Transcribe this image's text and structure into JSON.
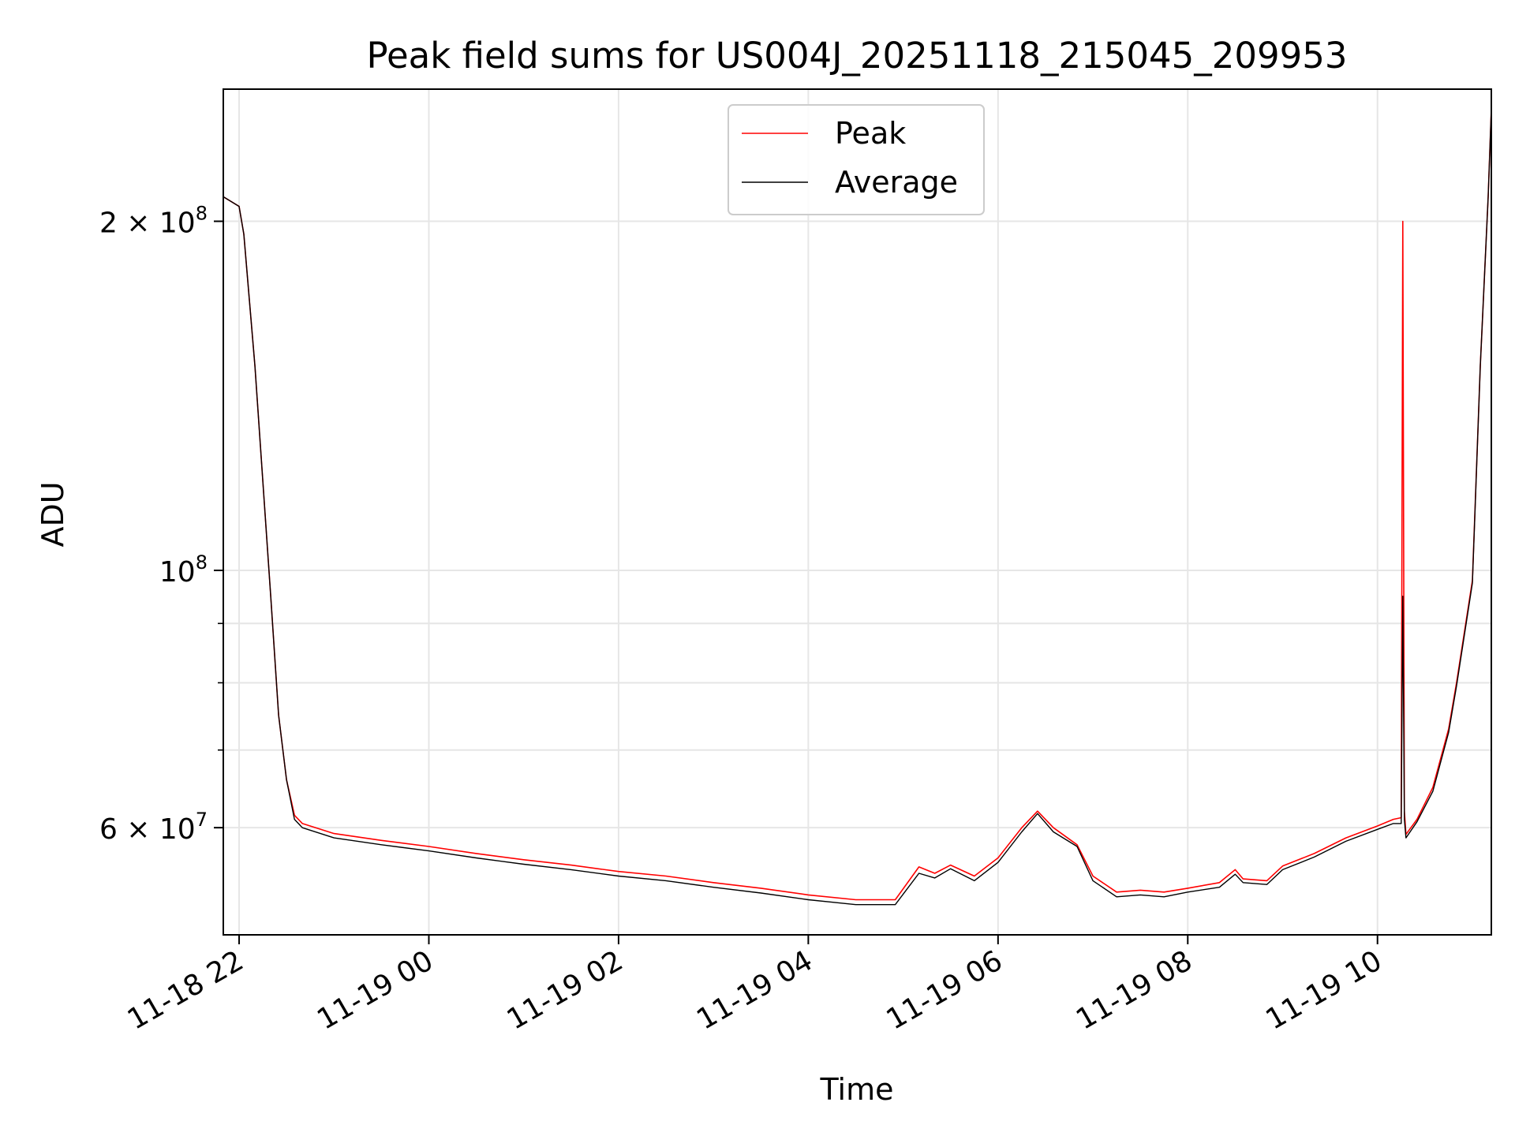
{
  "chart_data": {
    "type": "line",
    "title": "Peak field sums for US004J_20251118_215045_209953",
    "xlabel": "Time",
    "ylabel": "ADU",
    "y_scale": "log",
    "ylim": [
      48500000,
      260000000
    ],
    "xlim": [
      "2025-11-18T21:50",
      "2025-11-19T11:12"
    ],
    "grid": true,
    "legend_position": "upper center",
    "x_tick_labels": [
      {
        "t": "2025-11-18T22:00",
        "label": "11-18 22"
      },
      {
        "t": "2025-11-19T00:00",
        "label": "11-19 00"
      },
      {
        "t": "2025-11-19T02:00",
        "label": "11-19 02"
      },
      {
        "t": "2025-11-19T04:00",
        "label": "11-19 04"
      },
      {
        "t": "2025-11-19T06:00",
        "label": "11-19 06"
      },
      {
        "t": "2025-11-19T08:00",
        "label": "11-19 08"
      },
      {
        "t": "2025-11-19T10:00",
        "label": "11-19 10"
      }
    ],
    "y_tick_labels": [
      {
        "value": 200000000,
        "mantissa": "2",
        "times": " × ",
        "base": "10",
        "exp": "8"
      },
      {
        "value": 100000000,
        "mantissa": "",
        "times": "",
        "base": "10",
        "exp": "8"
      },
      {
        "value": 60000000,
        "mantissa": "6",
        "times": " × ",
        "base": "10",
        "exp": "7"
      }
    ],
    "y_minor_ticks": [
      70000000,
      80000000,
      90000000
    ],
    "series": [
      {
        "name": "Peak",
        "color": "#ff0000",
        "x": [
          "2025-11-18T21:50",
          "2025-11-18T22:00",
          "2025-11-18T22:03",
          "2025-11-18T22:10",
          "2025-11-18T22:20",
          "2025-11-18T22:25",
          "2025-11-18T22:30",
          "2025-11-18T22:35",
          "2025-11-18T22:40",
          "2025-11-18T23:00",
          "2025-11-18T23:30",
          "2025-11-19T00:00",
          "2025-11-19T00:30",
          "2025-11-19T01:00",
          "2025-11-19T01:30",
          "2025-11-19T02:00",
          "2025-11-19T02:30",
          "2025-11-19T03:00",
          "2025-11-19T03:30",
          "2025-11-19T04:00",
          "2025-11-19T04:30",
          "2025-11-19T04:55",
          "2025-11-19T05:10",
          "2025-11-19T05:20",
          "2025-11-19T05:30",
          "2025-11-19T05:45",
          "2025-11-19T06:00",
          "2025-11-19T06:15",
          "2025-11-19T06:25",
          "2025-11-19T06:35",
          "2025-11-19T06:50",
          "2025-11-19T07:00",
          "2025-11-19T07:15",
          "2025-11-19T07:30",
          "2025-11-19T07:45",
          "2025-11-19T08:00",
          "2025-11-19T08:20",
          "2025-11-19T08:30",
          "2025-11-19T08:35",
          "2025-11-19T08:50",
          "2025-11-19T09:00",
          "2025-11-19T09:20",
          "2025-11-19T09:40",
          "2025-11-19T10:00",
          "2025-11-19T10:10",
          "2025-11-19T10:15",
          "2025-11-19T10:16",
          "2025-11-19T10:17",
          "2025-11-19T10:18",
          "2025-11-19T10:25",
          "2025-11-19T10:35",
          "2025-11-19T10:45",
          "2025-11-19T10:50",
          "2025-11-19T11:00",
          "2025-11-19T11:05",
          "2025-11-19T11:10",
          "2025-11-19T11:12"
        ],
        "values": [
          210000000,
          206000000,
          195000000,
          150000000,
          95000000,
          75000000,
          66000000,
          61500000,
          60500000,
          59300000,
          58500000,
          57800000,
          57000000,
          56300000,
          55700000,
          55000000,
          54500000,
          53800000,
          53200000,
          52500000,
          52000000,
          52000000,
          55500000,
          54800000,
          55700000,
          54500000,
          56500000,
          60000000,
          62000000,
          60000000,
          58000000,
          54500000,
          52800000,
          53000000,
          52800000,
          53200000,
          53800000,
          55200000,
          54200000,
          54000000,
          55600000,
          57000000,
          58800000,
          60200000,
          61000000,
          61200000,
          200000000,
          62000000,
          59200000,
          61000000,
          65000000,
          73000000,
          80000000,
          98000000,
          150000000,
          210000000,
          250000000
        ]
      },
      {
        "name": "Average",
        "color": "#000000",
        "x": [
          "2025-11-18T21:50",
          "2025-11-18T22:00",
          "2025-11-18T22:03",
          "2025-11-18T22:10",
          "2025-11-18T22:20",
          "2025-11-18T22:25",
          "2025-11-18T22:30",
          "2025-11-18T22:35",
          "2025-11-18T22:40",
          "2025-11-18T23:00",
          "2025-11-18T23:30",
          "2025-11-19T00:00",
          "2025-11-19T00:30",
          "2025-11-19T01:00",
          "2025-11-19T01:30",
          "2025-11-19T02:00",
          "2025-11-19T02:30",
          "2025-11-19T03:00",
          "2025-11-19T03:30",
          "2025-11-19T04:00",
          "2025-11-19T04:30",
          "2025-11-19T04:55",
          "2025-11-19T05:10",
          "2025-11-19T05:20",
          "2025-11-19T05:30",
          "2025-11-19T05:45",
          "2025-11-19T06:00",
          "2025-11-19T06:15",
          "2025-11-19T06:25",
          "2025-11-19T06:35",
          "2025-11-19T06:50",
          "2025-11-19T07:00",
          "2025-11-19T07:15",
          "2025-11-19T07:30",
          "2025-11-19T07:45",
          "2025-11-19T08:00",
          "2025-11-19T08:20",
          "2025-11-19T08:30",
          "2025-11-19T08:35",
          "2025-11-19T08:50",
          "2025-11-19T09:00",
          "2025-11-19T09:20",
          "2025-11-19T09:40",
          "2025-11-19T10:00",
          "2025-11-19T10:10",
          "2025-11-19T10:15",
          "2025-11-19T10:16",
          "2025-11-19T10:17",
          "2025-11-19T10:18",
          "2025-11-19T10:25",
          "2025-11-19T10:35",
          "2025-11-19T10:45",
          "2025-11-19T10:50",
          "2025-11-19T11:00",
          "2025-11-19T11:05",
          "2025-11-19T11:10",
          "2025-11-19T11:12"
        ],
        "values": [
          210000000,
          206000000,
          195000000,
          150000000,
          95000000,
          75000000,
          66000000,
          61000000,
          60000000,
          58800000,
          58000000,
          57300000,
          56500000,
          55800000,
          55200000,
          54500000,
          54000000,
          53300000,
          52700000,
          52000000,
          51500000,
          51500000,
          54800000,
          54300000,
          55300000,
          54000000,
          56000000,
          59500000,
          61700000,
          59500000,
          57800000,
          54000000,
          52300000,
          52500000,
          52300000,
          52800000,
          53300000,
          54700000,
          53800000,
          53600000,
          55200000,
          56600000,
          58400000,
          59800000,
          60500000,
          60500000,
          95000000,
          61000000,
          58800000,
          60700000,
          64500000,
          72500000,
          79500000,
          97500000,
          150000000,
          210000000,
          250000000
        ]
      }
    ]
  }
}
